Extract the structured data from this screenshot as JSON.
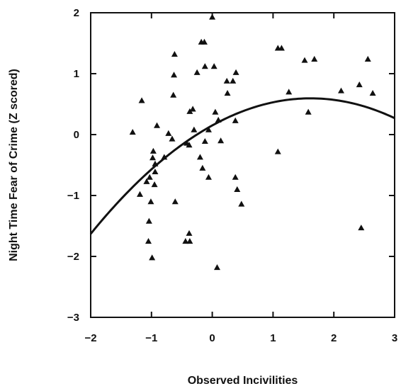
{
  "chart_data": {
    "type": "scatter",
    "xlabel": "Observed Incivilities",
    "ylabel": "Night Time Fear of Crime (Z scored)",
    "xlim": [
      -2,
      3
    ],
    "ylim": [
      -3,
      2
    ],
    "xticks": [
      -2,
      -1,
      0,
      1,
      2,
      3
    ],
    "yticks": [
      -3,
      -2,
      -1,
      0,
      1,
      2
    ],
    "xtick_labels": [
      "−2",
      "−1",
      "0",
      "1",
      "2",
      "3"
    ],
    "ytick_labels": [
      "−3",
      "−2",
      "−1",
      "0",
      "1",
      "2"
    ],
    "grid": false,
    "marker": "triangle",
    "points": [
      [
        0.0,
        1.93
      ],
      [
        -0.13,
        1.52
      ],
      [
        -0.18,
        1.52
      ],
      [
        -0.62,
        1.32
      ],
      [
        1.08,
        1.42
      ],
      [
        1.14,
        1.42
      ],
      [
        1.52,
        1.22
      ],
      [
        1.68,
        1.24
      ],
      [
        2.56,
        1.24
      ],
      [
        -0.12,
        1.12
      ],
      [
        0.03,
        1.12
      ],
      [
        -0.63,
        0.98
      ],
      [
        -0.25,
        1.02
      ],
      [
        0.39,
        1.02
      ],
      [
        0.24,
        0.88
      ],
      [
        0.34,
        0.88
      ],
      [
        0.25,
        0.68
      ],
      [
        1.26,
        0.7
      ],
      [
        2.12,
        0.72
      ],
      [
        2.42,
        0.82
      ],
      [
        2.64,
        0.68
      ],
      [
        -0.64,
        0.65
      ],
      [
        -1.16,
        0.56
      ],
      [
        -0.32,
        0.42
      ],
      [
        -0.37,
        0.38
      ],
      [
        0.05,
        0.37
      ],
      [
        1.58,
        0.37
      ],
      [
        0.1,
        0.24
      ],
      [
        0.38,
        0.23
      ],
      [
        -0.91,
        0.15
      ],
      [
        -1.31,
        0.04
      ],
      [
        -0.72,
        0.02
      ],
      [
        -0.3,
        0.08
      ],
      [
        -0.06,
        0.08
      ],
      [
        -0.66,
        -0.07
      ],
      [
        -0.12,
        -0.11
      ],
      [
        0.14,
        -0.1
      ],
      [
        -0.42,
        -0.14
      ],
      [
        -0.38,
        -0.17
      ],
      [
        -0.97,
        -0.27
      ],
      [
        1.08,
        -0.28
      ],
      [
        -0.2,
        -0.37
      ],
      [
        -0.79,
        -0.37
      ],
      [
        -0.98,
        -0.38
      ],
      [
        -0.94,
        -0.48
      ],
      [
        -0.16,
        -0.55
      ],
      [
        -0.94,
        -0.61
      ],
      [
        -0.06,
        -0.7
      ],
      [
        0.38,
        -0.7
      ],
      [
        -1.03,
        -0.7
      ],
      [
        -1.08,
        -0.77
      ],
      [
        -0.95,
        -0.82
      ],
      [
        0.41,
        -0.9
      ],
      [
        -1.19,
        -0.98
      ],
      [
        0.48,
        -1.14
      ],
      [
        -0.61,
        -1.1
      ],
      [
        -1.01,
        -1.1
      ],
      [
        -1.04,
        -1.42
      ],
      [
        2.45,
        -1.53
      ],
      [
        -0.38,
        -1.62
      ],
      [
        -0.44,
        -1.75
      ],
      [
        -0.37,
        -1.75
      ],
      [
        -1.05,
        -1.75
      ],
      [
        -0.99,
        -2.02
      ],
      [
        0.08,
        -2.18
      ]
    ],
    "fit_curve": {
      "type": "quadratic",
      "coefficients": [
        0.15,
        0.55,
        -0.17
      ],
      "x_range": [
        -2,
        3
      ]
    }
  }
}
